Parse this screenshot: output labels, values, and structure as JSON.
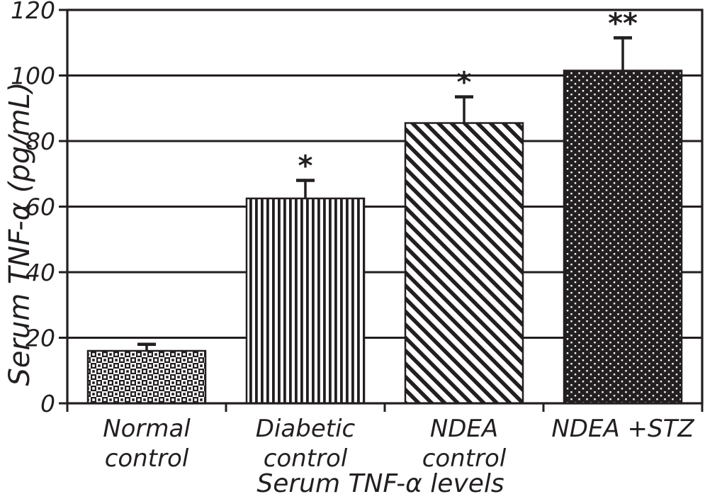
{
  "chart_data": {
    "type": "bar",
    "title": "",
    "xlabel": "Serum TNF-α levels",
    "ylabel": "Serum TNF-α (pg/mL)",
    "categories": [
      "Normal control",
      "Diabetic control",
      "NDEA control",
      "NDEA +STZ"
    ],
    "category_lines": [
      [
        "Normal",
        "control"
      ],
      [
        "Diabetic",
        "control"
      ],
      [
        "NDEA",
        "control"
      ],
      [
        "NDEA +STZ"
      ]
    ],
    "values": [
      16,
      62.5,
      85.5,
      101.5
    ],
    "errors_plus": [
      2,
      5.5,
      8,
      10
    ],
    "significance": [
      "",
      "*",
      "*",
      "**"
    ],
    "yticks": [
      0,
      20,
      40,
      60,
      80,
      100,
      120
    ],
    "ylim": [
      0,
      120
    ],
    "grid": "horizontal-on",
    "legend": "none",
    "bar_patterns": [
      "checker-weave",
      "vertical-stripes",
      "diagonal-stripes",
      "white-dots-on-black"
    ],
    "ink_color": "#231f20",
    "background_color": "#ffffff"
  }
}
